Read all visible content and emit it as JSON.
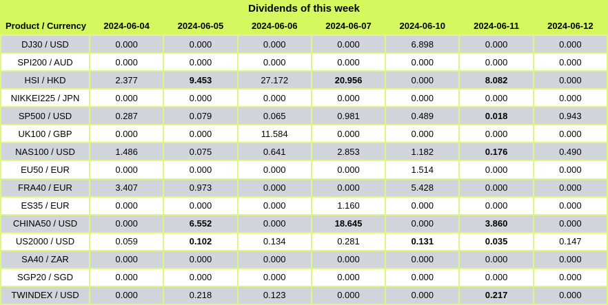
{
  "chart_data": {
    "type": "table",
    "title": "Dividends of this week",
    "columns": [
      "Product / Currency",
      "2024-06-04",
      "2024-06-05",
      "2024-06-06",
      "2024-06-07",
      "2024-06-10",
      "2024-06-11",
      "2024-06-12"
    ],
    "rows": [
      {
        "product": "DJ30 / USD",
        "values": [
          "0.000",
          "0.000",
          "0.000",
          "0.000",
          "6.898",
          "0.000",
          "0.000"
        ],
        "bold": []
      },
      {
        "product": "SPI200 / AUD",
        "values": [
          "0.000",
          "0.000",
          "0.000",
          "0.000",
          "0.000",
          "0.000",
          "0.000"
        ],
        "bold": []
      },
      {
        "product": "HSI / HKD",
        "values": [
          "2.377",
          "9.453",
          "27.172",
          "20.956",
          "0.000",
          "8.082",
          "0.000"
        ],
        "bold": [
          1,
          3,
          5
        ]
      },
      {
        "product": "NIKKEI225 / JPN",
        "values": [
          "0.000",
          "0.000",
          "0.000",
          "0.000",
          "0.000",
          "0.000",
          "0.000"
        ],
        "bold": []
      },
      {
        "product": "SP500 / USD",
        "values": [
          "0.287",
          "0.079",
          "0.065",
          "0.981",
          "0.489",
          "0.018",
          "0.943"
        ],
        "bold": [
          5
        ]
      },
      {
        "product": "UK100 / GBP",
        "values": [
          "0.000",
          "0.000",
          "11.584",
          "0.000",
          "0.000",
          "0.000",
          "0.000"
        ],
        "bold": []
      },
      {
        "product": "NAS100 / USD",
        "values": [
          "1.486",
          "0.075",
          "0.641",
          "2.853",
          "1.182",
          "0.176",
          "0.490"
        ],
        "bold": [
          5
        ]
      },
      {
        "product": "EU50 / EUR",
        "values": [
          "0.000",
          "0.000",
          "0.000",
          "0.000",
          "1.514",
          "0.000",
          "0.000"
        ],
        "bold": []
      },
      {
        "product": "FRA40 / EUR",
        "values": [
          "3.407",
          "0.973",
          "0.000",
          "0.000",
          "5.428",
          "0.000",
          "0.000"
        ],
        "bold": []
      },
      {
        "product": "ES35 / EUR",
        "values": [
          "0.000",
          "0.000",
          "0.000",
          "1.160",
          "0.000",
          "0.000",
          "0.000"
        ],
        "bold": []
      },
      {
        "product": "CHINA50 / USD",
        "values": [
          "0.000",
          "6.552",
          "0.000",
          "18.645",
          "0.000",
          "3.860",
          "0.000"
        ],
        "bold": [
          1,
          3,
          5
        ]
      },
      {
        "product": "US2000 / USD",
        "values": [
          "0.059",
          "0.102",
          "0.134",
          "0.281",
          "0.131",
          "0.035",
          "0.147"
        ],
        "bold": [
          1,
          4,
          5
        ]
      },
      {
        "product": "SA40 / ZAR",
        "values": [
          "0.000",
          "0.000",
          "0.000",
          "0.000",
          "0.000",
          "0.000",
          "0.000"
        ],
        "bold": []
      },
      {
        "product": "SGP20 / SGD",
        "values": [
          "0.000",
          "0.000",
          "0.000",
          "0.000",
          "0.000",
          "0.000",
          "0.000"
        ],
        "bold": []
      },
      {
        "product": "TWINDEX / USD",
        "values": [
          "0.000",
          "0.218",
          "0.123",
          "0.000",
          "0.000",
          "0.217",
          "0.000"
        ],
        "bold": [
          5
        ]
      }
    ],
    "layout": {
      "first_row_shade": "gray",
      "row_alternation": "gray-white",
      "grid": "on"
    },
    "colors": {
      "header_bg": "#d3f95e",
      "grid_border": "#def77d",
      "row_shaded_bg": "#d1d4db",
      "row_plain_bg": "#ffffff",
      "text": "#000000"
    }
  }
}
